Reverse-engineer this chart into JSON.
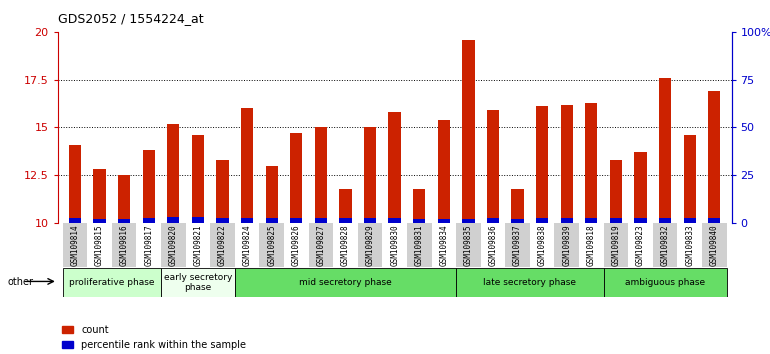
{
  "title": "GDS2052 / 1554224_at",
  "samples": [
    "GSM109814",
    "GSM109815",
    "GSM109816",
    "GSM109817",
    "GSM109820",
    "GSM109821",
    "GSM109822",
    "GSM109824",
    "GSM109825",
    "GSM109826",
    "GSM109827",
    "GSM109828",
    "GSM109829",
    "GSM109830",
    "GSM109831",
    "GSM109834",
    "GSM109835",
    "GSM109836",
    "GSM109837",
    "GSM109838",
    "GSM109839",
    "GSM109818",
    "GSM109819",
    "GSM109823",
    "GSM109832",
    "GSM109833",
    "GSM109840"
  ],
  "red_values": [
    14.1,
    12.8,
    12.5,
    13.8,
    15.2,
    14.6,
    13.3,
    16.0,
    13.0,
    14.7,
    15.0,
    11.8,
    15.0,
    15.8,
    11.8,
    15.4,
    19.6,
    15.9,
    11.8,
    16.1,
    16.2,
    16.3,
    13.3,
    13.7,
    17.6,
    14.6,
    16.9
  ],
  "blue_values": [
    0.28,
    0.22,
    0.22,
    0.25,
    0.3,
    0.32,
    0.28,
    0.26,
    0.26,
    0.26,
    0.26,
    0.26,
    0.28,
    0.26,
    0.22,
    0.22,
    0.22,
    0.26,
    0.22,
    0.26,
    0.26,
    0.28,
    0.26,
    0.26,
    0.28,
    0.26,
    0.26
  ],
  "baseline": 10.0,
  "ylim_left": [
    10,
    20
  ],
  "ylim_right": [
    0,
    100
  ],
  "yticks_left": [
    10,
    12.5,
    15,
    17.5,
    20
  ],
  "ytick_labels_left": [
    "10",
    "12.5",
    "15",
    "17.5",
    "20"
  ],
  "yticks_right": [
    0,
    25,
    50,
    75,
    100
  ],
  "ytick_labels_right": [
    "0",
    "25",
    "50",
    "75",
    "100%"
  ],
  "groups": [
    {
      "label": "proliferative phase",
      "start": 0,
      "end": 4,
      "color": "#ccffcc"
    },
    {
      "label": "early secretory\nphase",
      "start": 4,
      "end": 7,
      "color": "#eeffee"
    },
    {
      "label": "mid secretory phase",
      "start": 7,
      "end": 16,
      "color": "#66dd66"
    },
    {
      "label": "late secretory phase",
      "start": 16,
      "end": 22,
      "color": "#66dd66"
    },
    {
      "label": "ambiguous phase",
      "start": 22,
      "end": 27,
      "color": "#66dd66"
    }
  ],
  "red_color": "#cc2200",
  "blue_color": "#0000cc",
  "xtick_bg_colors": [
    "#d8d8d8",
    "#d8d8d8",
    "#d8d8d8",
    "#d8d8d8",
    "#d8d8d8",
    "#d8d8d8",
    "#d8d8d8",
    "#ffffff",
    "#d8d8d8",
    "#ffffff",
    "#d8d8d8",
    "#ffffff",
    "#d8d8d8",
    "#ffffff",
    "#d8d8d8",
    "#d8d8d8",
    "#ffffff",
    "#d8d8d8",
    "#ffffff",
    "#d8d8d8",
    "#ffffff",
    "#d8d8d8",
    "#ffffff",
    "#d8d8d8",
    "#ffffff",
    "#d8d8d8",
    "#ffffff"
  ],
  "left_axis_color": "#cc0000",
  "right_axis_color": "#0000cc"
}
